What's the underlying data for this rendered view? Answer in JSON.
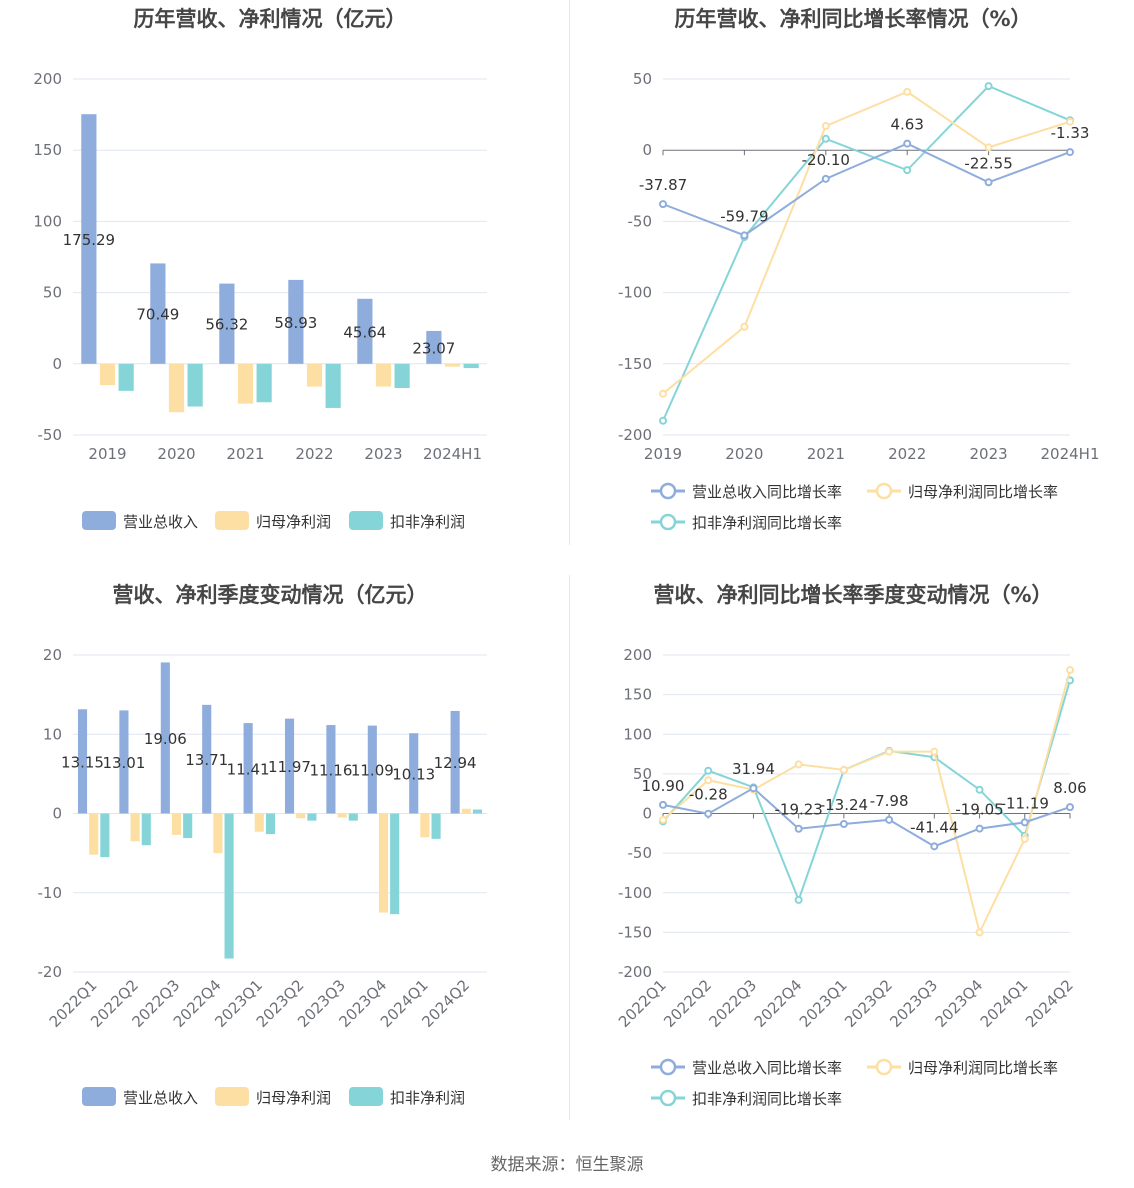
{
  "source": "数据来源：恒生聚源",
  "legend_bar": [
    "营业总收入",
    "归母净利润",
    "扣非净利润"
  ],
  "legend_line": [
    "营业总收入同比增长率",
    "归母净利润同比增长率",
    "扣非净利润同比增长率"
  ],
  "colors": {
    "revenue": "#8eacdc",
    "net_profit": "#fedfa3",
    "deducted": "#85d5d8"
  },
  "chart_data": [
    {
      "id": "annual",
      "type": "bar",
      "title": "历年营收、净利情况（亿元）",
      "categories": [
        "2019",
        "2020",
        "2021",
        "2022",
        "2023",
        "2024H1"
      ],
      "series": [
        {
          "name": "营业总收入",
          "values": [
            175.29,
            70.49,
            56.32,
            58.93,
            45.64,
            23.07
          ]
        },
        {
          "name": "归母净利润",
          "values": [
            -15,
            -34,
            -28,
            -16,
            -16,
            -2
          ]
        },
        {
          "name": "扣非净利润",
          "values": [
            -19,
            -30,
            -27,
            -31,
            -17,
            -3
          ]
        }
      ],
      "labels": [
        "175.29",
        "70.49",
        "56.32",
        "58.93",
        "45.64",
        "23.07"
      ],
      "yticks": [
        "200",
        "150",
        "100",
        "50",
        "0",
        "-50"
      ],
      "ylim": [
        -50,
        200
      ]
    },
    {
      "id": "annual-growth",
      "type": "line",
      "title": "历年营收、净利同比增长率情况（%）",
      "categories": [
        "2019",
        "2020",
        "2021",
        "2022",
        "2023",
        "2024H1"
      ],
      "series": [
        {
          "name": "营业总收入同比增长率",
          "values": [
            -37.87,
            -59.79,
            -20.1,
            4.63,
            -22.55,
            -1.33
          ]
        },
        {
          "name": "归母净利润同比增长率",
          "values": [
            -171,
            -124,
            17,
            41,
            2,
            20
          ]
        },
        {
          "name": "扣非净利润同比增长率",
          "values": [
            -190,
            -61,
            8,
            -14,
            45,
            21
          ]
        }
      ],
      "labels": [
        "-37.87",
        "-59.79",
        "-20.10",
        "4.63",
        "-22.55",
        "-1.33"
      ],
      "yticks": [
        "50",
        "0",
        "-50",
        "-100",
        "-150",
        "-200"
      ],
      "ylim": [
        -200,
        50
      ]
    },
    {
      "id": "quarterly",
      "type": "bar",
      "title": "营收、净利季度变动情况（亿元）",
      "categories": [
        "2022Q1",
        "2022Q2",
        "2022Q3",
        "2022Q4",
        "2023Q1",
        "2023Q2",
        "2023Q3",
        "2023Q4",
        "2024Q1",
        "2024Q2"
      ],
      "series": [
        {
          "name": "营业总收入",
          "values": [
            13.15,
            13.01,
            19.06,
            13.71,
            11.41,
            11.97,
            11.16,
            11.09,
            10.13,
            12.94
          ]
        },
        {
          "name": "归母净利润",
          "values": [
            -5.2,
            -3.5,
            -2.7,
            -5.0,
            -2.3,
            -0.6,
            -0.5,
            -12.5,
            -3.0,
            0.6
          ]
        },
        {
          "name": "扣非净利润",
          "values": [
            -5.5,
            -4.0,
            -3.1,
            -18.3,
            -2.6,
            -0.9,
            -0.9,
            -12.7,
            -3.2,
            0.5
          ]
        }
      ],
      "labels": [
        "13.15",
        "13.01",
        "19.06",
        "13.71",
        "11.41",
        "11.97",
        "11.16",
        "11.09",
        "10.13",
        "12.94"
      ],
      "yticks": [
        "20",
        "10",
        "0",
        "-10",
        "-20"
      ],
      "ylim": [
        -20,
        20
      ]
    },
    {
      "id": "quarterly-growth",
      "type": "line",
      "title": "营收、净利同比增长率季度变动情况（%）",
      "categories": [
        "2022Q1",
        "2022Q2",
        "2022Q3",
        "2022Q4",
        "2023Q1",
        "2023Q2",
        "2023Q3",
        "2023Q4",
        "2024Q1",
        "2024Q2"
      ],
      "series": [
        {
          "name": "营业总收入同比增长率",
          "values": [
            10.9,
            -0.28,
            31.94,
            -19.23,
            -13.24,
            -7.98,
            -41.44,
            -19.05,
            -11.19,
            8.06
          ]
        },
        {
          "name": "归母净利润同比增长率",
          "values": [
            -8,
            42,
            30,
            62,
            55,
            78,
            78,
            -150,
            -32,
            181
          ]
        },
        {
          "name": "扣非净利润同比增长率",
          "values": [
            -10,
            54,
            33,
            -109,
            55,
            79,
            71,
            30,
            -28,
            168
          ]
        }
      ],
      "labels": [
        "10.90",
        "-0.28",
        "31.94",
        "-19.23",
        "-13.24",
        "-7.98",
        "-41.44",
        "-19.05",
        "-11.19",
        "8.06"
      ],
      "yticks": [
        "200",
        "150",
        "100",
        "50",
        "0",
        "-50",
        "-100",
        "-150",
        "-200"
      ],
      "ylim": [
        -200,
        200
      ]
    }
  ]
}
